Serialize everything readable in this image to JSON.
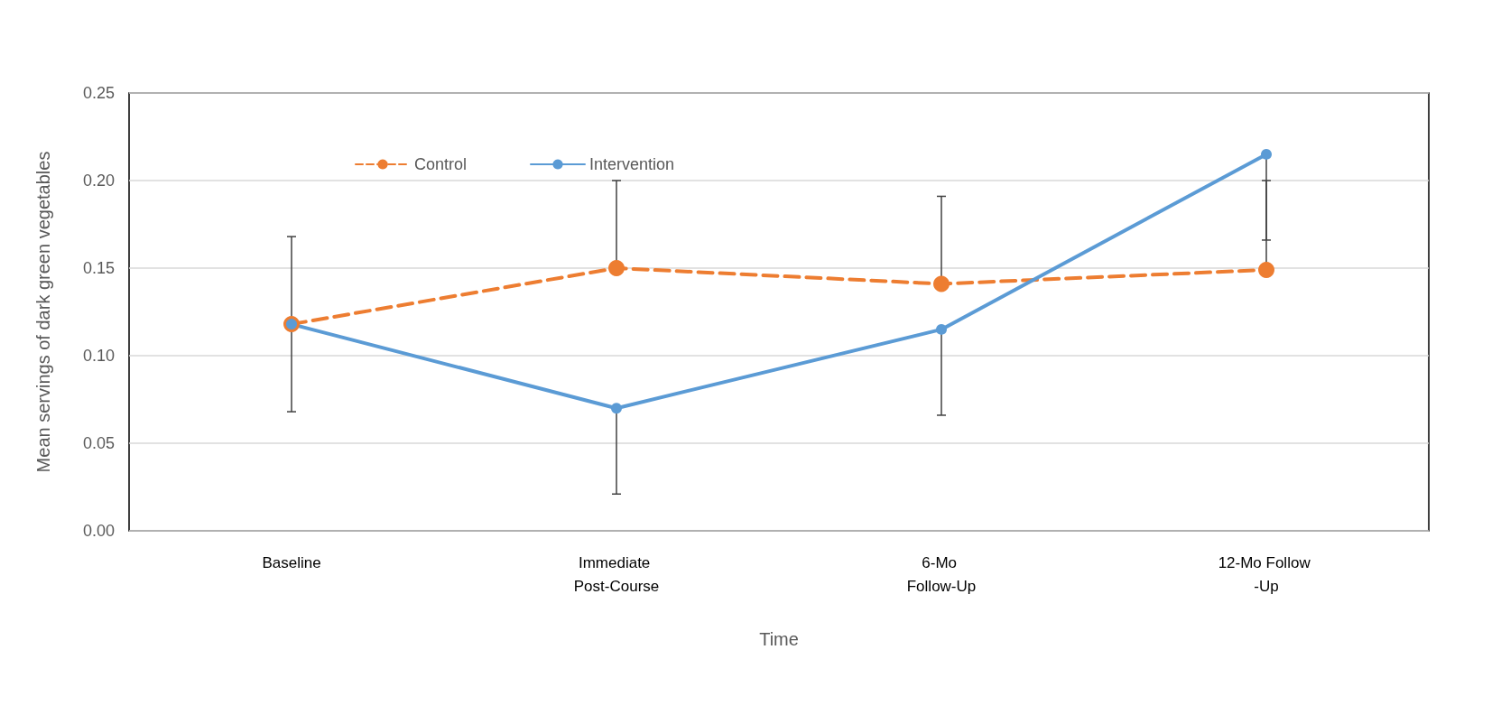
{
  "chart_data": {
    "type": "line",
    "xlabel": "Time",
    "ylabel": "Mean servings of dark green vegetables",
    "categories": [
      "Baseline",
      "Immediate Post-Course",
      "6-Mo Follow-Up",
      "12-Mo Follow -Up"
    ],
    "series": [
      {
        "name": "Control",
        "color": "#ed7d31",
        "line_style": "dashed",
        "values": [
          0.118,
          0.15,
          0.141,
          0.149
        ],
        "errors": [
          [
            0.118,
            0.168
          ],
          [
            0.15,
            0.2
          ],
          [
            0.141,
            0.191
          ],
          [
            0.149,
            0.2
          ]
        ]
      },
      {
        "name": "Intervention",
        "color": "#5b9bd5",
        "line_style": "solid",
        "values": [
          0.118,
          0.07,
          0.115,
          0.215
        ],
        "errors": [
          [
            0.068,
            0.118
          ],
          [
            0.021,
            0.07
          ],
          [
            0.066,
            0.115
          ],
          [
            0.166,
            0.215
          ]
        ]
      }
    ],
    "ylim": [
      0,
      0.25
    ],
    "yticks": [
      {
        "value": 0,
        "label": "0.00"
      },
      {
        "value": 0.05,
        "label": "0.05"
      },
      {
        "value": 0.1,
        "label": "0.10"
      },
      {
        "value": 0.15,
        "label": "0.15"
      },
      {
        "value": 0.2,
        "label": "0.20"
      },
      {
        "value": 0.25,
        "label": "0.25"
      }
    ],
    "grid": "y",
    "legend": "top",
    "marker": "circle"
  }
}
